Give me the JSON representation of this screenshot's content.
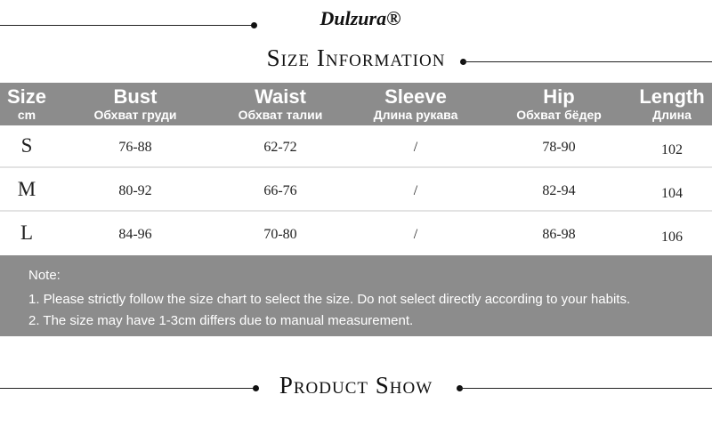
{
  "brand": "Dulzura®",
  "title": "Size Information",
  "table": {
    "columns": [
      {
        "name": "Size",
        "sub": "cm"
      },
      {
        "name": "Bust",
        "sub": "Обхват груди"
      },
      {
        "name": "Waist",
        "sub": "Обхват талии"
      },
      {
        "name": "Sleeve",
        "sub": "Длина рукава"
      },
      {
        "name": "Hip",
        "sub": "Обхват бёдер"
      },
      {
        "name": "Length",
        "sub": "Длина"
      }
    ],
    "rows": [
      [
        "S",
        "76-88",
        "62-72",
        "/",
        "78-90",
        "102"
      ],
      [
        "M",
        "80-92",
        "66-76",
        "/",
        "82-94",
        "104"
      ],
      [
        "L",
        "84-96",
        "70-80",
        "/",
        "86-98",
        "106"
      ]
    ]
  },
  "note": {
    "heading": "Note:",
    "lines": [
      "1. Please strictly follow the size chart to select the size. Do not select directly according to your habits.",
      "2. The size may have 1-3cm differs due to manual measurement."
    ]
  },
  "section": "Product Show"
}
